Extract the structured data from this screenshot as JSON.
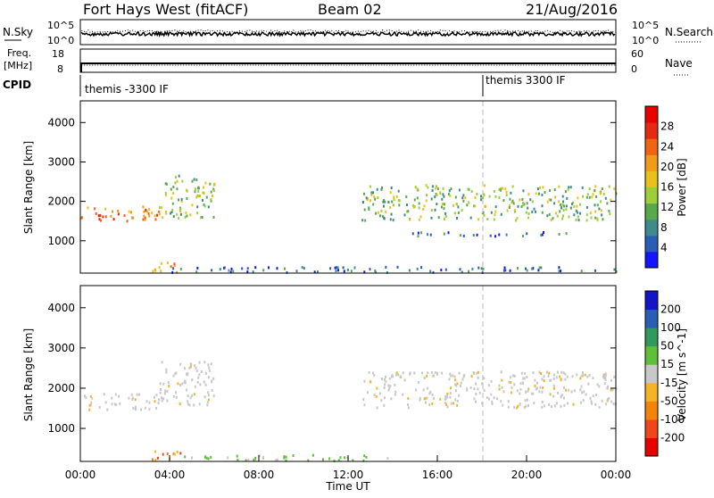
{
  "header": {
    "radar": "Fort Hays West (fitACF)",
    "beam": "Beam 02",
    "date": "21/Aug/2016"
  },
  "noise_panel": {
    "left_label": "N.Sky",
    "right_label": "N.Search",
    "left_ticks": [
      "10^5",
      "10^0"
    ],
    "right_ticks": [
      "10^5",
      "10^0"
    ]
  },
  "freq_panel": {
    "left_label_line1": "Freq.",
    "left_label_line2": "[MHz]",
    "right_label": "Nave",
    "left_ticks": [
      "18",
      "8"
    ],
    "right_ticks": [
      "60",
      "0"
    ]
  },
  "cpid_panel": {
    "label": "CPID",
    "entries": [
      {
        "label": "themis -3300 IF",
        "start_hour": 0
      },
      {
        "label": "themis 3300 IF",
        "start_hour": 18
      }
    ]
  },
  "chart_data": [
    {
      "type": "heatmap",
      "panel": "power",
      "ylabel": "Slant Range [km]",
      "xlabel": "",
      "ylim": [
        180,
        4550
      ],
      "yticks": [
        1000,
        2000,
        3000,
        4000
      ],
      "xlim_hours": [
        0,
        24
      ],
      "colorbar": {
        "label": "Power [dB]",
        "ticks": [
          "4",
          "8",
          "12",
          "16",
          "20",
          "24",
          "28"
        ],
        "colors": [
          "#1414ff",
          "#2a5db8",
          "#3f8a8a",
          "#59a84a",
          "#9ccf3a",
          "#e8c21a",
          "#f29a1a",
          "#f06414",
          "#e62a12",
          "#e60000"
        ]
      },
      "features": [
        {
          "t0": 0.0,
          "t1": 3.5,
          "r0": 1450,
          "r1": 1850,
          "level": "high"
        },
        {
          "t0": 3.5,
          "t1": 6.0,
          "r0": 1550,
          "r1": 2650,
          "level": "mid"
        },
        {
          "t0": 3.2,
          "t1": 4.6,
          "r0": 180,
          "r1": 450,
          "level": "high"
        },
        {
          "t0": 12.6,
          "t1": 24.0,
          "r0": 1500,
          "r1": 2400,
          "level": "mid"
        },
        {
          "t0": 14.0,
          "t1": 22.0,
          "r0": 1100,
          "r1": 1200,
          "level": "low"
        },
        {
          "t0": 4.0,
          "t1": 24.0,
          "r0": 180,
          "r1": 320,
          "level": "low"
        }
      ]
    },
    {
      "type": "heatmap",
      "panel": "velocity",
      "ylabel": "Slant Range [km]",
      "xlabel": "Time UT",
      "ylim": [
        180,
        4550
      ],
      "yticks": [
        1000,
        2000,
        3000,
        4000
      ],
      "xticks": [
        "00:00",
        "04:00",
        "08:00",
        "12:00",
        "16:00",
        "20:00",
        "00:00"
      ],
      "xlim_hours": [
        0,
        24
      ],
      "colorbar": {
        "label": "Velocity [m s^-1]",
        "ticks": [
          "-200",
          "-100",
          "-50",
          "-15",
          "15",
          "50",
          "100",
          "200"
        ],
        "colors": [
          "#e60000",
          "#f0461a",
          "#f5820a",
          "#f5b428",
          "#c8c8c8",
          "#5fbf3a",
          "#2f9a5a",
          "#2a5db8",
          "#1414c8"
        ]
      },
      "features": [
        {
          "t0": 0.0,
          "t1": 3.5,
          "r0": 1450,
          "r1": 1850,
          "level": "ground"
        },
        {
          "t0": 3.5,
          "t1": 6.0,
          "r0": 1550,
          "r1": 2650,
          "level": "ground"
        },
        {
          "t0": 3.2,
          "t1": 4.6,
          "r0": 180,
          "r1": 450,
          "level": "negative"
        },
        {
          "t0": 12.6,
          "t1": 24.0,
          "r0": 1500,
          "r1": 2400,
          "level": "ground"
        },
        {
          "t0": 4.0,
          "t1": 14.0,
          "r0": 180,
          "r1": 320,
          "level": "positive"
        }
      ]
    }
  ]
}
